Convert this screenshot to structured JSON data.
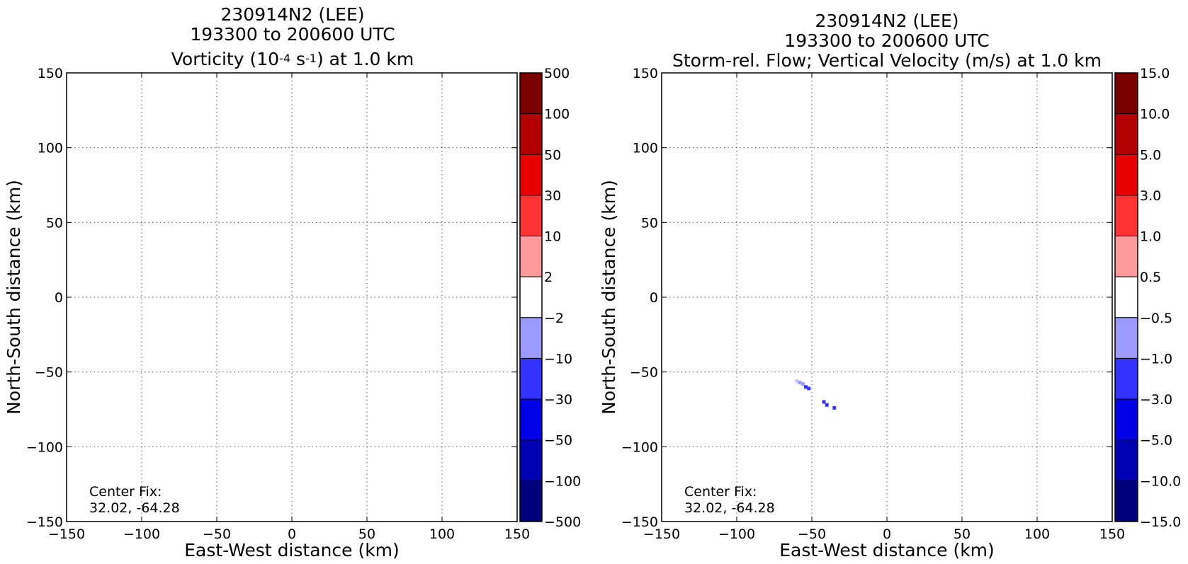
{
  "figure": {
    "panels": [
      {
        "title_line1": "230914N2 (LEE)",
        "title_line2": "193300 to 200600 UTC",
        "title_line3_pre": "Vorticity (10",
        "title_line3_sup1": "-4",
        "title_line3_mid": " s",
        "title_line3_sup2": "-1",
        "title_line3_post": ") at 1.0 km",
        "annotation_line1": "Center Fix:",
        "annotation_line2": "32.02, -64.28"
      },
      {
        "title_line1": "230914N2 (LEE)",
        "title_line2": "193300 to 200600 UTC",
        "title_line3": "Storm-rel. Flow; Vertical Velocity (m/s) at 1.0 km",
        "annotation_line1": "Center Fix:",
        "annotation_line2": "32.02, -64.28"
      }
    ]
  },
  "chart_data": [
    {
      "type": "heatmap",
      "title": "230914N2 (LEE) 193300 to 200600 UTC Vorticity (10^-4 s^-1) at 1.0 km",
      "xlabel": "East-West distance (km)",
      "ylabel": "North-South distance (km)",
      "xlim": [
        -150,
        150
      ],
      "ylim": [
        -150,
        150
      ],
      "xticks": [
        -150,
        -100,
        -50,
        0,
        50,
        100,
        150
      ],
      "yticks": [
        -150,
        -100,
        -50,
        0,
        50,
        100,
        150
      ],
      "xtick_labels": [
        "−150",
        "−100",
        "−50",
        "0",
        "50",
        "100",
        "150"
      ],
      "ytick_labels": [
        "−150",
        "−100",
        "−50",
        "0",
        "50",
        "100",
        "150"
      ],
      "grid": true,
      "colorbar": {
        "labels": [
          "500",
          "100",
          "50",
          "30",
          "10",
          "2",
          "−2",
          "−10",
          "−30",
          "−50",
          "−100",
          "−500"
        ],
        "colors": [
          "#7a0000",
          "#b30000",
          "#e60000",
          "#ff3333",
          "#ff9a9a",
          "#ffffff",
          "#9a9aff",
          "#3333ff",
          "#0000e6",
          "#0000b3",
          "#00007a"
        ]
      },
      "points": []
    },
    {
      "type": "heatmap",
      "title": "230914N2 (LEE) 193300 to 200600 UTC Storm-rel. Flow; Vertical Velocity (m/s) at 1.0 km",
      "xlabel": "East-West distance (km)",
      "ylabel": "North-South distance (km)",
      "xlim": [
        -150,
        150
      ],
      "ylim": [
        -150,
        150
      ],
      "xticks": [
        -150,
        -100,
        -50,
        0,
        50,
        100,
        150
      ],
      "yticks": [
        -150,
        -100,
        -50,
        0,
        50,
        100,
        150
      ],
      "xtick_labels": [
        "−150",
        "−100",
        "−50",
        "0",
        "50",
        "100",
        "150"
      ],
      "ytick_labels": [
        "−150",
        "−100",
        "−50",
        "0",
        "50",
        "100",
        "150"
      ],
      "grid": true,
      "colorbar": {
        "labels": [
          "15.0",
          "10.0",
          "5.0",
          "3.0",
          "1.0",
          "0.5",
          "−0.5",
          "−1.0",
          "−3.0",
          "−5.0",
          "−10.0",
          "−15.0"
        ],
        "colors": [
          "#7a0000",
          "#b30000",
          "#e60000",
          "#ff3333",
          "#ff9a9a",
          "#ffffff",
          "#9a9aff",
          "#3333ff",
          "#0000e6",
          "#0000b3",
          "#00007a"
        ]
      },
      "points": [
        {
          "x": -60,
          "y": -56,
          "color": "#c8c8ff"
        },
        {
          "x": -58,
          "y": -57,
          "color": "#9a9aff"
        },
        {
          "x": -56,
          "y": -58,
          "color": "#9a9aff"
        },
        {
          "x": -54,
          "y": -60,
          "color": "#3333ff"
        },
        {
          "x": -52,
          "y": -61,
          "color": "#3333ff"
        },
        {
          "x": -42,
          "y": -70,
          "color": "#3333ff"
        },
        {
          "x": -40,
          "y": -72,
          "color": "#3333ff"
        },
        {
          "x": -35,
          "y": -74,
          "color": "#3333ff"
        }
      ]
    }
  ]
}
